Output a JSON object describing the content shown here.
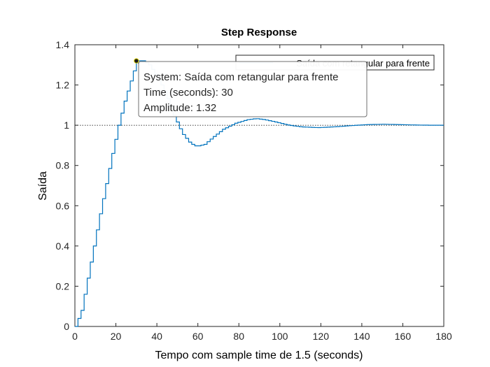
{
  "chart_data": {
    "type": "line",
    "style": "stairs",
    "title": "Step Response",
    "xlabel": "Tempo com sample time de 1.5 (seconds)",
    "ylabel": "Saída",
    "xlim": [
      0,
      180
    ],
    "ylim": [
      0,
      1.4
    ],
    "x_ticks": [
      "0",
      "20",
      "40",
      "60",
      "80",
      "100",
      "120",
      "140",
      "160",
      "180"
    ],
    "y_ticks": [
      "0",
      "0.2",
      "0.4",
      "0.6",
      "0.8",
      "1",
      "1.2",
      "1.4"
    ],
    "sample_time": 1.5,
    "reference_line": 1,
    "grid": false,
    "legend_position": "top-right",
    "series": [
      {
        "name": "Saída com retangular para frente",
        "color": "#0072BD",
        "points": [
          [
            0,
            0
          ],
          [
            3,
            0.08
          ],
          [
            6,
            0.24
          ],
          [
            9,
            0.4
          ],
          [
            12,
            0.56
          ],
          [
            15,
            0.71
          ],
          [
            18,
            0.86
          ],
          [
            21,
            1.0
          ],
          [
            24,
            1.12
          ],
          [
            27,
            1.22
          ],
          [
            30,
            1.32
          ],
          [
            33,
            1.32
          ],
          [
            36,
            1.3
          ],
          [
            40,
            1.24
          ],
          [
            44,
            1.16
          ],
          [
            48,
            1.05
          ],
          [
            52,
            0.96
          ],
          [
            56,
            0.91
          ],
          [
            59,
            0.895
          ],
          [
            63,
            0.905
          ],
          [
            67,
            0.94
          ],
          [
            72,
            0.98
          ],
          [
            78,
            1.01
          ],
          [
            84,
            1.028
          ],
          [
            88,
            1.033
          ],
          [
            92,
            1.028
          ],
          [
            98,
            1.015
          ],
          [
            104,
            1.0
          ],
          [
            110,
            0.992
          ],
          [
            118,
            0.988
          ],
          [
            126,
            0.992
          ],
          [
            134,
            0.998
          ],
          [
            142,
            1.003
          ],
          [
            150,
            1.005
          ],
          [
            158,
            1.003
          ],
          [
            166,
            1.001
          ],
          [
            174,
            1.0
          ],
          [
            180,
            1.0
          ]
        ]
      }
    ],
    "datatip": {
      "x": 30,
      "y": 1.32,
      "line1": "System: Saída com retangular para frente",
      "line2": "Time (seconds): 30",
      "line3": "Amplitude: 1.32"
    }
  }
}
